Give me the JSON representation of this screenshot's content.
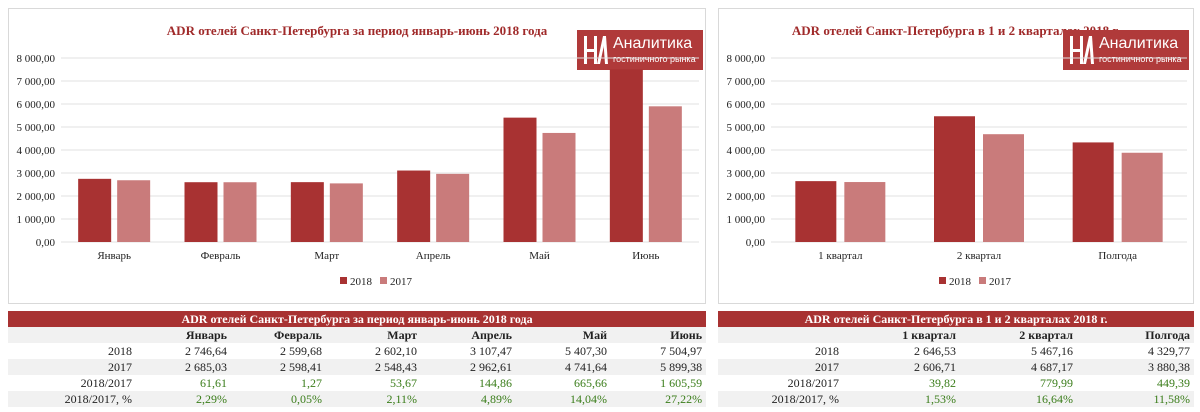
{
  "brand": {
    "name": "Аналитика",
    "subtitle": "гостиничного рынка",
    "color": "#b03a3a"
  },
  "colors": {
    "s2018": "#a83232",
    "s2017": "#c97b7b",
    "grid": "#e0e0e0",
    "positive": "#3a7d1a"
  },
  "left_table": {
    "title": "ADR отелей Санкт-Петербурга за период январь-июнь 2018 года",
    "columns": [
      "Январь",
      "Февраль",
      "Март",
      "Апрель",
      "Май",
      "Июнь"
    ],
    "rows": [
      {
        "label": "2018",
        "cells": [
          "2 746,64",
          "2 599,68",
          "2 602,10",
          "3 107,47",
          "5 407,30",
          "7 504,97"
        ]
      },
      {
        "label": "2017",
        "cells": [
          "2 685,03",
          "2 598,41",
          "2 548,43",
          "2 962,61",
          "4 741,64",
          "5 899,38"
        ]
      },
      {
        "label": "2018/2017",
        "cells": [
          "61,61",
          "1,27",
          "53,67",
          "144,86",
          "665,66",
          "1 605,59"
        ]
      },
      {
        "label": "2018/2017, %",
        "cells": [
          "2,29%",
          "0,05%",
          "2,11%",
          "4,89%",
          "14,04%",
          "27,22%"
        ]
      }
    ]
  },
  "right_table": {
    "title": "ADR отелей Санкт-Петербурга в 1 и 2 кварталах 2018 г.",
    "columns": [
      "1 квартал",
      "2 квартал",
      "Полгода"
    ],
    "rows": [
      {
        "label": "2018",
        "cells": [
          "2 646,53",
          "5 467,16",
          "4 329,77"
        ]
      },
      {
        "label": "2017",
        "cells": [
          "2 606,71",
          "4 687,17",
          "3 880,38"
        ]
      },
      {
        "label": "2018/2017",
        "cells": [
          "39,82",
          "779,99",
          "449,39"
        ]
      },
      {
        "label": "2018/2017, %",
        "cells": [
          "1,53%",
          "16,64%",
          "11,58%"
        ]
      }
    ]
  },
  "chart_data": [
    {
      "type": "bar",
      "title": "ADR отелей Санкт-Петербурга за период январь-июнь 2018 года",
      "categories": [
        "Январь",
        "Февраль",
        "Март",
        "Апрель",
        "Май",
        "Июнь"
      ],
      "series": [
        {
          "name": "2018",
          "values": [
            2746.64,
            2599.68,
            2602.1,
            3107.47,
            5407.3,
            7504.97
          ]
        },
        {
          "name": "2017",
          "values": [
            2685.03,
            2598.41,
            2548.43,
            2962.61,
            4741.64,
            5899.38
          ]
        }
      ],
      "yticks": [
        "0,00",
        "1 000,00",
        "2 000,00",
        "3 000,00",
        "4 000,00",
        "5 000,00",
        "6 000,00",
        "7 000,00",
        "8 000,00"
      ],
      "xlabel": "",
      "ylabel": "",
      "ylim": [
        0,
        8000
      ],
      "grid": true,
      "legend": "bottom"
    },
    {
      "type": "bar",
      "title": "ADR отелей Санкт-Петербурга в 1 и 2 кварталах 2018 г.",
      "categories": [
        "1 квартал",
        "2 квартал",
        "Полгода"
      ],
      "series": [
        {
          "name": "2018",
          "values": [
            2646.53,
            5467.16,
            4329.77
          ]
        },
        {
          "name": "2017",
          "values": [
            2606.71,
            4687.17,
            3880.38
          ]
        }
      ],
      "yticks": [
        "0,00",
        "1 000,00",
        "2 000,00",
        "3 000,00",
        "4 000,00",
        "5 000,00",
        "6 000,00",
        "7 000,00",
        "8 000,00"
      ],
      "xlabel": "",
      "ylabel": "",
      "ylim": [
        0,
        8000
      ],
      "grid": true,
      "legend": "bottom"
    }
  ]
}
